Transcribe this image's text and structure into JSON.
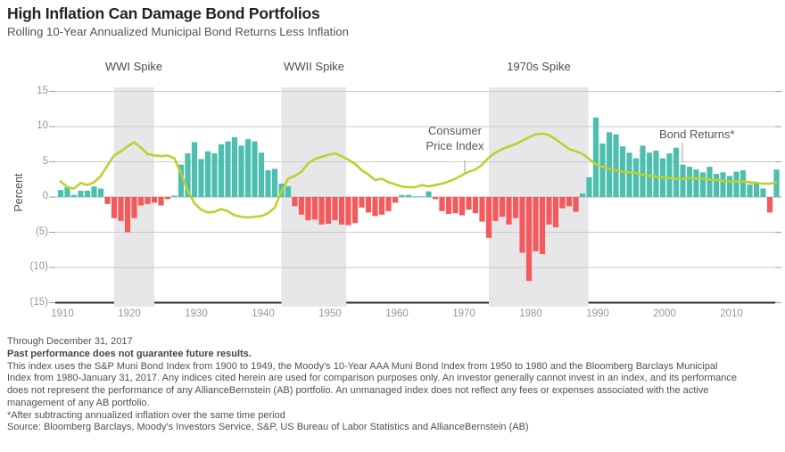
{
  "header": {
    "title": "High Inflation Can Damage Bond Portfolios",
    "subtitle": "Rolling 10-Year Annualized Municipal Bond Returns Less Inflation"
  },
  "annotations": {
    "wwi": "WWI Spike",
    "wwii": "WWII Spike",
    "seventies": "1970s Spike",
    "cpi_line1": "Consumer",
    "cpi_line2": "Price Index",
    "bond_returns": "Bond Returns*"
  },
  "chart_data": {
    "type": "bar",
    "title": "High Inflation Can Damage Bond Portfolios",
    "subtitle": "Rolling 10-Year Annualized Municipal Bond Returns Less Inflation",
    "ylabel": "Percent",
    "ylim": [
      -15,
      15
    ],
    "yticks": [
      {
        "value": 15,
        "label": "15"
      },
      {
        "value": 10,
        "label": "10"
      },
      {
        "value": 5,
        "label": "5"
      },
      {
        "value": 0,
        "label": "0"
      },
      {
        "value": -5,
        "label": "(5)"
      },
      {
        "value": -10,
        "label": "(10)"
      },
      {
        "value": -15,
        "label": "(15)"
      }
    ],
    "xticks": [
      1910,
      1920,
      1930,
      1940,
      1950,
      1960,
      1970,
      1980,
      1990,
      2000,
      2010
    ],
    "x": [
      1910,
      1911,
      1912,
      1913,
      1914,
      1915,
      1916,
      1917,
      1918,
      1919,
      1920,
      1921,
      1922,
      1923,
      1924,
      1925,
      1926,
      1927,
      1928,
      1929,
      1930,
      1931,
      1932,
      1933,
      1934,
      1935,
      1936,
      1937,
      1938,
      1939,
      1940,
      1941,
      1942,
      1943,
      1944,
      1945,
      1946,
      1947,
      1948,
      1949,
      1950,
      1951,
      1952,
      1953,
      1954,
      1955,
      1956,
      1957,
      1958,
      1959,
      1960,
      1961,
      1962,
      1963,
      1964,
      1965,
      1966,
      1967,
      1968,
      1969,
      1970,
      1971,
      1972,
      1973,
      1974,
      1975,
      1976,
      1977,
      1978,
      1979,
      1980,
      1981,
      1982,
      1983,
      1984,
      1985,
      1986,
      1987,
      1988,
      1989,
      1990,
      1991,
      1992,
      1993,
      1994,
      1995,
      1996,
      1997,
      1998,
      1999,
      2000,
      2001,
      2002,
      2003,
      2004,
      2005,
      2006,
      2007,
      2008,
      2009,
      2010,
      2011,
      2012,
      2013,
      2014,
      2015,
      2016,
      2017
    ],
    "series": [
      {
        "name": "Bond Returns*",
        "type": "bar",
        "values": [
          1.0,
          1.4,
          0.3,
          0.9,
          0.9,
          1.5,
          1.2,
          -1.0,
          -3.0,
          -3.4,
          -5.0,
          -3.0,
          -1.2,
          -1.0,
          -0.8,
          -1.2,
          -0.3,
          0.2,
          4.6,
          6.2,
          7.8,
          5.4,
          6.5,
          6.2,
          7.5,
          7.9,
          8.5,
          7.3,
          8.2,
          7.9,
          6.3,
          3.8,
          4.0,
          1.9,
          1.5,
          -1.3,
          -2.5,
          -3.3,
          -3.2,
          -3.9,
          -3.8,
          -3.3,
          -3.9,
          -4.0,
          -3.7,
          -1.5,
          -2.2,
          -2.7,
          -2.5,
          -2.0,
          -0.8,
          0.3,
          0.3,
          0.1,
          0.1,
          0.8,
          -0.3,
          -2.0,
          -2.4,
          -2.3,
          -2.6,
          -1.8,
          -2.3,
          -3.5,
          -5.8,
          -3.4,
          -2.8,
          -3.9,
          -3.0,
          -7.9,
          -11.9,
          -7.7,
          -8.1,
          -3.9,
          -4.3,
          -1.6,
          -1.3,
          -2.1,
          0.5,
          2.8,
          11.3,
          7.6,
          9.2,
          8.9,
          7.2,
          6.3,
          5.5,
          7.3,
          6.3,
          6.6,
          5.5,
          6.2,
          7.0,
          4.6,
          4.3,
          3.9,
          3.5,
          4.3,
          3.3,
          3.5,
          3.0,
          3.6,
          3.8,
          1.8,
          2.1,
          1.2,
          -2.2,
          3.9
        ]
      },
      {
        "name": "Consumer Price Index",
        "type": "line",
        "values": [
          2.2,
          1.4,
          1.2,
          2.0,
          1.7,
          2.1,
          3.0,
          4.5,
          5.9,
          6.5,
          7.2,
          7.8,
          7.0,
          6.1,
          5.9,
          5.8,
          5.9,
          5.5,
          3.3,
          0.9,
          -0.9,
          -1.8,
          -2.2,
          -2.1,
          -1.7,
          -2.0,
          -2.6,
          -2.8,
          -2.9,
          -2.8,
          -2.7,
          -2.3,
          -1.5,
          0.8,
          2.6,
          3.0,
          3.6,
          4.8,
          5.4,
          5.7,
          6.0,
          6.2,
          5.8,
          5.3,
          4.7,
          3.8,
          3.2,
          2.4,
          2.6,
          2.1,
          1.8,
          1.5,
          1.4,
          1.4,
          1.7,
          1.5,
          1.7,
          1.9,
          2.2,
          2.6,
          3.1,
          3.6,
          3.9,
          4.6,
          5.6,
          6.3,
          6.8,
          7.2,
          7.5,
          8.0,
          8.5,
          8.9,
          9.0,
          8.8,
          8.2,
          7.5,
          6.8,
          6.5,
          6.1,
          5.4,
          4.6,
          4.3,
          4.0,
          3.8,
          3.6,
          3.5,
          3.4,
          3.2,
          3.0,
          2.9,
          2.8,
          2.7,
          2.6,
          2.6,
          2.7,
          2.6,
          2.6,
          2.5,
          2.4,
          2.3,
          2.2,
          2.2,
          2.2,
          2.1,
          2.0,
          1.9,
          1.9,
          2.1
        ]
      }
    ],
    "bands": [
      {
        "label": "WWI Spike",
        "from_year": 1918,
        "to_year": 1924
      },
      {
        "label": "WWII Spike",
        "from_year": 1943,
        "to_year": 1952.7
      },
      {
        "label": "1970s Spike",
        "from_year": 1974,
        "to_year": 1988.9
      }
    ],
    "colors": {
      "positive_bar": "#4ebfae",
      "negative_bar": "#f4595c",
      "cpi_line": "#bdd02f",
      "band": "#e7e7e9",
      "gridline": "#cbcbcd",
      "axis": "#2b2b2d"
    },
    "legend_position": "annotated-inline",
    "grid": true
  },
  "footnotes": {
    "lines": [
      "Through December 31, 2017",
      "Past performance does not guarantee future results.",
      "This index uses the S&P Muni Bond Index from 1900 to 1949, the Moody's 10-Year AAA Muni Bond Index from 1950 to 1980 and the Bloomberg Barclays Municipal",
      "Index from 1980-January 31, 2017. Any indices cited herein are used for comparison purposes only. An investor generally cannot invest in an index, and its performance",
      "does not represent the performance of any AllianceBernstein (AB) portfolio. An unmanaged index does not reflect any fees or expenses associated with the active",
      "management of any AB portfolio.",
      "*After subtracting annualized inflation over the same time period",
      "Source: Bloomberg Barclays, Moody's Investors Service, S&P, US Bureau of Labor Statistics and AllianceBernstein (AB)"
    ]
  }
}
